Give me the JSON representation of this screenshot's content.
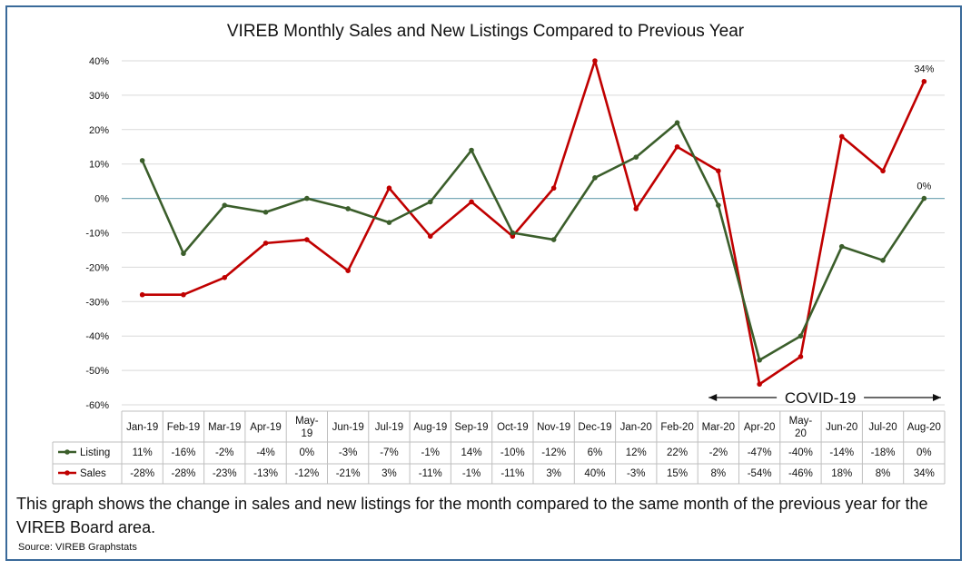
{
  "chart_data": {
    "type": "line",
    "title": "VIREB Monthly Sales and New Listings Compared to Previous Year",
    "categories": [
      "Jan-19",
      "Feb-19",
      "Mar-19",
      "Apr-19",
      "May-19",
      "Jun-19",
      "Jul-19",
      "Aug-19",
      "Sep-19",
      "Oct-19",
      "Nov-19",
      "Dec-19",
      "Jan-20",
      "Feb-20",
      "Mar-20",
      "Apr-20",
      "May-20",
      "Jun-20",
      "Jul-20",
      "Aug-20"
    ],
    "category_lines": [
      [
        "Jan-19"
      ],
      [
        "Feb-19"
      ],
      [
        "Mar-19"
      ],
      [
        "Apr-19"
      ],
      [
        "May-",
        "19"
      ],
      [
        "Jun-19"
      ],
      [
        "Jul-19"
      ],
      [
        "Aug-19"
      ],
      [
        "Sep-19"
      ],
      [
        "Oct-19"
      ],
      [
        "Nov-19"
      ],
      [
        "Dec-19"
      ],
      [
        "Jan-20"
      ],
      [
        "Feb-20"
      ],
      [
        "Mar-20"
      ],
      [
        "Apr-20"
      ],
      [
        "May-",
        "20"
      ],
      [
        "Jun-20"
      ],
      [
        "Jul-20"
      ],
      [
        "Aug-20"
      ]
    ],
    "series": [
      {
        "name": "Listing",
        "color": "#3b5e2b",
        "values": [
          11,
          -16,
          -2,
          -4,
          0,
          -3,
          -7,
          -1,
          14,
          -10,
          -12,
          6,
          12,
          22,
          -2,
          -47,
          -40,
          -14,
          -18,
          0
        ]
      },
      {
        "name": "Sales",
        "color": "#c00000",
        "values": [
          -28,
          -28,
          -23,
          -13,
          -12,
          -21,
          3,
          -11,
          -1,
          -11,
          3,
          40,
          -3,
          15,
          8,
          -54,
          -46,
          18,
          8,
          34
        ]
      }
    ],
    "ylim": [
      -60,
      40
    ],
    "yticks": [
      "-60%",
      "-50%",
      "-40%",
      "-30%",
      "-20%",
      "-10%",
      "0%",
      "10%",
      "20%",
      "30%",
      "40%"
    ],
    "ytick_values": [
      -60,
      -50,
      -40,
      -30,
      -20,
      -10,
      0,
      10,
      20,
      30,
      40
    ],
    "zero_line_color": "#7aaab8",
    "grid": true,
    "legend": "data-table",
    "end_labels": [
      {
        "series": "Sales",
        "text": "34%"
      },
      {
        "series": "Listing",
        "text": "0%"
      }
    ],
    "annotation": {
      "text": "COVID-19",
      "from": "Mar-20",
      "to": "Aug-20"
    }
  },
  "table": {
    "rows": [
      {
        "label": "Listing",
        "color": "#3b5e2b",
        "cells": [
          "11%",
          "-16%",
          "-2%",
          "-4%",
          "0%",
          "-3%",
          "-7%",
          "-1%",
          "14%",
          "-10%",
          "-12%",
          "6%",
          "12%",
          "22%",
          "-2%",
          "-47%",
          "-40%",
          "-14%",
          "-18%",
          "0%"
        ]
      },
      {
        "label": "Sales",
        "color": "#c00000",
        "cells": [
          "-28%",
          "-28%",
          "-23%",
          "-13%",
          "-12%",
          "-21%",
          "3%",
          "-11%",
          "-1%",
          "-11%",
          "3%",
          "40%",
          "-3%",
          "15%",
          "8%",
          "-54%",
          "-46%",
          "18%",
          "8%",
          "34%"
        ]
      }
    ]
  },
  "caption": "This graph shows the change in sales and new listings for the month compared to the same month of the previous year for the VIREB Board area.",
  "source": "Source:  VIREB Graphstats"
}
